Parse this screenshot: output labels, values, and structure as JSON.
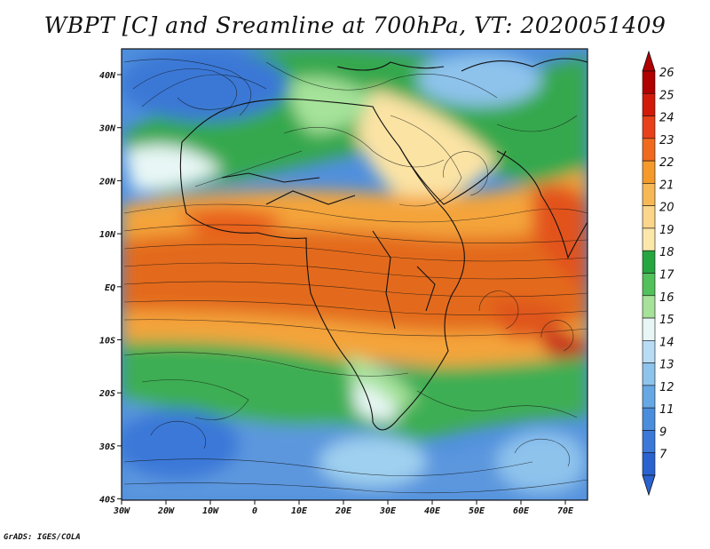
{
  "title": "WBPT [C] and Sreamline at 700hPa, VT: 2020051409",
  "credit": "GrADS: IGES/COLA",
  "lon_ticks": [
    "30W",
    "20W",
    "10W",
    "0",
    "10E",
    "20E",
    "30E",
    "40E",
    "50E",
    "60E",
    "70E"
  ],
  "lat_ticks": [
    "40N",
    "30N",
    "20N",
    "10N",
    "EQ",
    "10S",
    "20S",
    "30S",
    "40S"
  ],
  "colorbar": {
    "labels": [
      "26",
      "25",
      "24",
      "23",
      "22",
      "21",
      "20",
      "19",
      "18",
      "17",
      "16",
      "15",
      "14",
      "13",
      "12",
      "11",
      "9",
      "7"
    ],
    "colors": [
      "#b00000",
      "#d21a0a",
      "#e8401a",
      "#f06a1e",
      "#f59a2a",
      "#f7b955",
      "#fad58a",
      "#fbe7aa",
      "#26a641",
      "#52c05b",
      "#a6e29a",
      "#e8f7f5",
      "#b9dcf5",
      "#8ec3ec",
      "#67a7e4",
      "#4b8ddd",
      "#3b78d8",
      "#2a62d0"
    ]
  },
  "colors": {
    "warm": "#e07a2a",
    "hot": "#d9531e",
    "green": "#3daf52",
    "lightgreen": "#9fdb94",
    "blue": "#5b97de",
    "cool": "#c7e3f5"
  }
}
